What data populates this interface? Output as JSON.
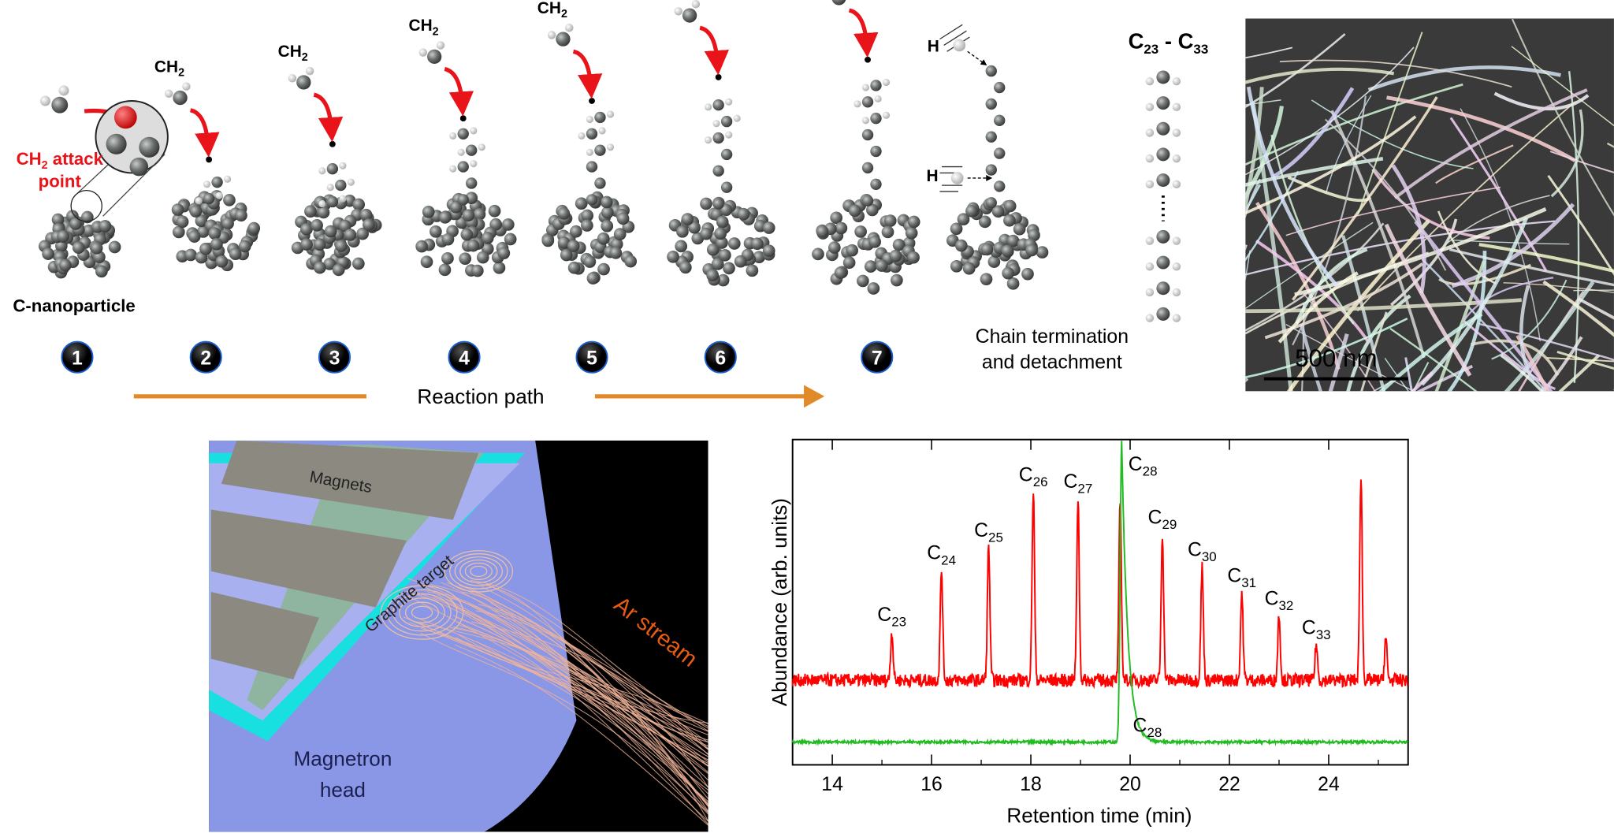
{
  "reaction_panel": {
    "ch2_label": {
      "base": "CH",
      "sub": "2"
    },
    "attack_label": {
      "line1_base": "CH",
      "line1_sub": "2",
      "line1_rest": " attack",
      "line2": "point"
    },
    "nanoparticle_label": "C-nanoparticle",
    "steps": [
      "1",
      "2",
      "3",
      "4",
      "5",
      "6",
      "7"
    ],
    "termination_label": {
      "line1": "Chain termination",
      "line2": "and detachment"
    },
    "hydrogen_label": "H",
    "chain_range_label": {
      "a": "C",
      "a_sub": "23",
      "dash": " - ",
      "b": "C",
      "b_sub": "33"
    },
    "reaction_path_label": "Reaction path",
    "colors": {
      "arrow": "#e08a2a",
      "attack": "#e8141a",
      "step_badge": "#111111",
      "atom": "#6d716f",
      "hydrogen": "#f2f2f2"
    }
  },
  "sem_image": {
    "scale_bar_label": "500 nm"
  },
  "magnetron_panel": {
    "magnets_label": "Magnets",
    "target_label": "Graphite target",
    "stream_label": "Ar stream",
    "head_label_line1": "Magnetron",
    "head_label_line2": "head",
    "colors": {
      "background": "#000000",
      "head": "#8a96e6",
      "target": "#8fb5a0",
      "cyan": "#19e0e0",
      "stream": "#f0b49a",
      "stream_label": "#e85c12"
    }
  },
  "chart_data": {
    "type": "line",
    "xlabel": "Retention time (min)",
    "ylabel": "Abundance (arb. units)",
    "xlim": [
      13.2,
      25.6
    ],
    "xticks": [
      14,
      16,
      18,
      20,
      22,
      24
    ],
    "ylim": [
      0,
      100
    ],
    "yticks": [],
    "grid": false,
    "series": [
      {
        "color": "#ff0000",
        "baseline": 26,
        "peaks": [
          {
            "x": 15.2,
            "y": 41,
            "label_base": "C",
            "label_sub": "23"
          },
          {
            "x": 16.2,
            "y": 60,
            "label_base": "C",
            "label_sub": "24"
          },
          {
            "x": 17.15,
            "y": 67,
            "label_base": "C",
            "label_sub": "25"
          },
          {
            "x": 18.05,
            "y": 84,
            "label_base": "C",
            "label_sub": "26"
          },
          {
            "x": 18.95,
            "y": 82,
            "label_base": "C",
            "label_sub": "27"
          },
          {
            "x": 19.8,
            "y": 81,
            "label_base": "C",
            "label_sub": "28"
          },
          {
            "x": 20.65,
            "y": 71,
            "label_base": "C",
            "label_sub": "29"
          },
          {
            "x": 21.45,
            "y": 61,
            "label_base": "C",
            "label_sub": "30"
          },
          {
            "x": 22.25,
            "y": 53,
            "label_base": "C",
            "label_sub": "31"
          },
          {
            "x": 23.0,
            "y": 46,
            "label_base": "C",
            "label_sub": "32"
          },
          {
            "x": 23.75,
            "y": 37,
            "label_base": "C",
            "label_sub": "33"
          },
          {
            "x": 24.65,
            "y": 89
          },
          {
            "x": 25.15,
            "y": 39
          }
        ]
      },
      {
        "color": "#22bb22",
        "baseline": 7,
        "peaks": [
          {
            "x": 19.83,
            "y": 100,
            "label_base": "C",
            "label_sub": "28"
          }
        ]
      }
    ]
  }
}
